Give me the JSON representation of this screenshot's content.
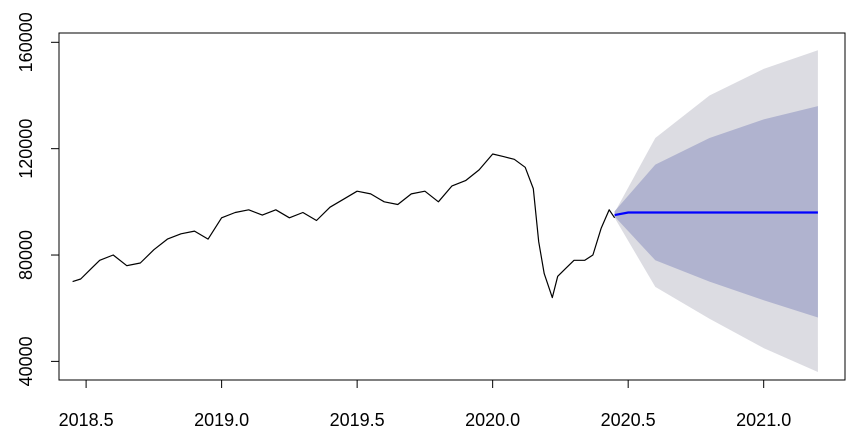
{
  "chart_data": {
    "type": "line",
    "title": "",
    "xlabel": "",
    "ylabel": "",
    "xlim": [
      2018.4,
      2021.3
    ],
    "ylim": [
      33000,
      163500
    ],
    "x_ticks": [
      2018.5,
      2019.0,
      2019.5,
      2020.0,
      2020.5,
      2021.0
    ],
    "x_tick_labels": [
      "2018.5",
      "2019.0",
      "2019.5",
      "2020.0",
      "2020.5",
      "2021.0"
    ],
    "y_ticks": [
      40000,
      80000,
      120000,
      160000
    ],
    "y_tick_labels": [
      "40000",
      "80000",
      "120000",
      "160000"
    ],
    "grid": false,
    "legend": "none",
    "series": [
      {
        "type": "line",
        "color": "#000000",
        "x": [
          2018.45,
          2018.48,
          2018.52,
          2018.55,
          2018.6,
          2018.65,
          2018.7,
          2018.75,
          2018.8,
          2018.85,
          2018.9,
          2018.95,
          2019.0,
          2019.05,
          2019.1,
          2019.15,
          2019.2,
          2019.25,
          2019.3,
          2019.35,
          2019.4,
          2019.45,
          2019.5,
          2019.55,
          2019.6,
          2019.65,
          2019.7,
          2019.75,
          2019.8,
          2019.85,
          2019.9,
          2019.95,
          2020.0,
          2020.04,
          2020.08,
          2020.12,
          2020.15,
          2020.17,
          2020.19,
          2020.21,
          2020.22,
          2020.24,
          2020.27,
          2020.3,
          2020.34,
          2020.37,
          2020.4,
          2020.43,
          2020.45
        ],
        "values": [
          70000,
          71000,
          75000,
          78000,
          80000,
          76000,
          77000,
          82000,
          86000,
          88000,
          89000,
          86000,
          94000,
          96000,
          97000,
          95000,
          97000,
          94000,
          96000,
          93000,
          98000,
          101000,
          104000,
          103000,
          100000,
          99000,
          103000,
          104000,
          100000,
          106000,
          108000,
          112000,
          118000,
          117000,
          116000,
          113000,
          105000,
          85000,
          73000,
          67000,
          64000,
          72000,
          75000,
          78000,
          78000,
          80000,
          90000,
          97000,
          94000
        ]
      },
      {
        "type": "line",
        "color": "#0000ff",
        "x": [
          2020.45,
          2020.5,
          2021.2
        ],
        "values": [
          95000,
          96000,
          96000
        ]
      },
      {
        "type": "area",
        "color": "#dcdce2",
        "x": [
          2020.45,
          2020.6,
          2020.8,
          2021.0,
          2021.2
        ],
        "lower": [
          94000,
          68000,
          56000,
          45000,
          36000
        ],
        "upper": [
          96000,
          124000,
          140000,
          150000,
          157000
        ]
      },
      {
        "type": "area",
        "color": "#b0b3cf",
        "x": [
          2020.45,
          2020.6,
          2020.8,
          2021.0,
          2021.2
        ],
        "lower": [
          94500,
          78000,
          70000,
          63000,
          56500
        ],
        "upper": [
          96500,
          114000,
          124000,
          131000,
          136000
        ]
      }
    ]
  }
}
